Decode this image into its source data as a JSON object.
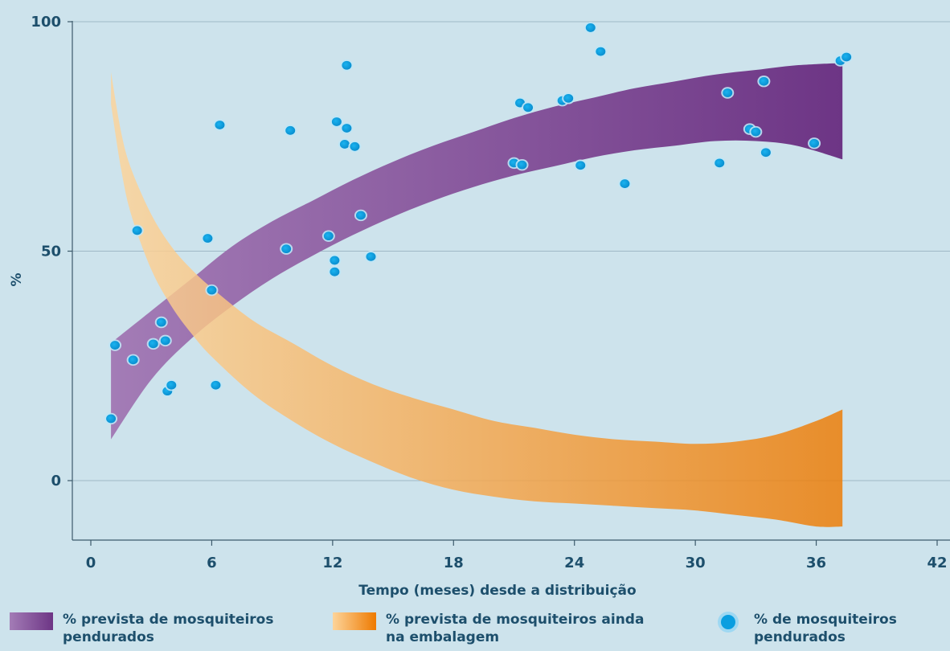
{
  "chart_data": {
    "type": "scatter",
    "xlabel": "Tempo (meses) desde a distribuição",
    "ylabel": "%",
    "xlim": [
      -1,
      42
    ],
    "ylim": [
      -13,
      100
    ],
    "xticks": [
      0,
      6,
      12,
      18,
      24,
      30,
      36,
      42
    ],
    "yticks": [
      0,
      50,
      100
    ],
    "grid": "horizontal",
    "colors": {
      "background": "#cde3ec",
      "grid": "#9fb8c6",
      "text": "#1d4f6c",
      "hung_band_start": "#a37cb6",
      "hung_band_end": "#6d3585",
      "package_band_start": "#fdd49a",
      "package_band_end": "#ee7a00",
      "points": "#14a6e6"
    },
    "bands": [
      {
        "name": "% prevista de mosquiteiros pendurados",
        "x": [
          1,
          3,
          5,
          7,
          9,
          11,
          13,
          15,
          17,
          19,
          21,
          23,
          25,
          27,
          29,
          31,
          33,
          35,
          37.3
        ],
        "upper": [
          30,
          37,
          44,
          51,
          56.5,
          61,
          65.5,
          69.5,
          73,
          76,
          79,
          81.5,
          83.5,
          85.5,
          87,
          88.5,
          89.5,
          90.5,
          91
        ],
        "lower": [
          9,
          22,
          31,
          38,
          44,
          49,
          53.5,
          57.5,
          61,
          64,
          66.5,
          68.5,
          70.5,
          72,
          73,
          74,
          74,
          73,
          70
        ]
      },
      {
        "name": "% prevista de mosquiteiros ainda na embalagem",
        "x": [
          1,
          1.5,
          2,
          3,
          4,
          5,
          6,
          8,
          10,
          12,
          14,
          16,
          18,
          20,
          22,
          24,
          26,
          28,
          30,
          32,
          34,
          36,
          37.3
        ],
        "upper": [
          89,
          76,
          68,
          58,
          51,
          46,
          42,
          35,
          30,
          25,
          21,
          18,
          15.5,
          13,
          11.5,
          10,
          9,
          8.5,
          8,
          8.5,
          10,
          13,
          15.5
        ],
        "lower": [
          82,
          68,
          58,
          46,
          38,
          32,
          27,
          19,
          13,
          8,
          4,
          0.5,
          -2,
          -3.5,
          -4.5,
          -5,
          -5.5,
          -6,
          -6.5,
          -7.5,
          -8.5,
          -10,
          -10
        ]
      }
    ],
    "series": [
      {
        "name": "% de mosquiteiros pendurados",
        "points": [
          [
            1,
            13.5
          ],
          [
            1.2,
            29.5
          ],
          [
            2.1,
            26.3
          ],
          [
            2.3,
            54.5
          ],
          [
            3.1,
            29.8
          ],
          [
            3.5,
            34.5
          ],
          [
            3.7,
            30.5
          ],
          [
            3.8,
            19.5
          ],
          [
            4.0,
            20.8
          ],
          [
            5.8,
            52.8
          ],
          [
            6.0,
            41.5
          ],
          [
            6.2,
            20.8
          ],
          [
            6.4,
            77.5
          ],
          [
            9.7,
            50.5
          ],
          [
            9.9,
            76.3
          ],
          [
            11.8,
            53.3
          ],
          [
            12.1,
            48.0
          ],
          [
            12.1,
            45.5
          ],
          [
            12.2,
            78.2
          ],
          [
            12.6,
            73.3
          ],
          [
            12.7,
            76.8
          ],
          [
            12.7,
            90.5
          ],
          [
            13.1,
            72.8
          ],
          [
            13.4,
            57.8
          ],
          [
            13.9,
            48.8
          ],
          [
            21.0,
            69.2
          ],
          [
            21.3,
            82.3
          ],
          [
            21.4,
            68.8
          ],
          [
            21.7,
            81.3
          ],
          [
            23.4,
            82.8
          ],
          [
            23.7,
            83.3
          ],
          [
            24.3,
            68.7
          ],
          [
            24.8,
            98.7
          ],
          [
            25.3,
            93.5
          ],
          [
            26.5,
            64.7
          ],
          [
            31.2,
            69.2
          ],
          [
            31.6,
            84.5
          ],
          [
            32.7,
            76.6
          ],
          [
            33.0,
            76.0
          ],
          [
            33.4,
            87.0
          ],
          [
            33.5,
            71.5
          ],
          [
            35.9,
            73.5
          ],
          [
            37.2,
            91.5
          ],
          [
            37.5,
            92.3
          ]
        ]
      }
    ]
  },
  "legend": {
    "hung_predicted": "% prevista de mosquiteiros pendurados",
    "package_predicted": "% prevista de mosquiteiros ainda na embalagem",
    "hung_observed": "% de mosquiteiros pendurados"
  }
}
